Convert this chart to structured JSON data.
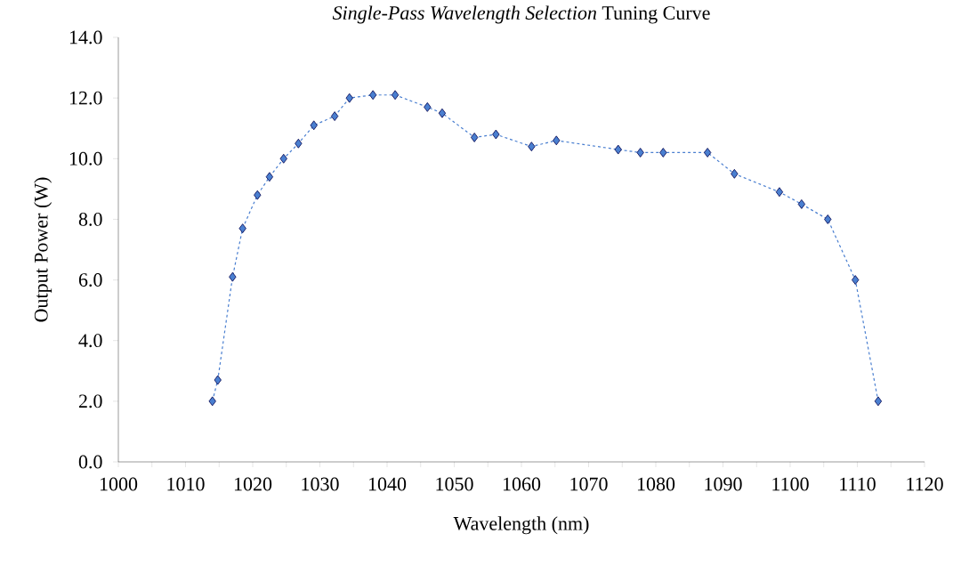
{
  "chart_data": {
    "type": "line",
    "title": "*Single-Pass Wavelength Selection* Tuning Curve",
    "xlabel": "Wavelength (nm)",
    "ylabel": "Output Power (W)",
    "x": [
      1014.0,
      1014.8,
      1017.0,
      1018.5,
      1020.7,
      1022.5,
      1024.6,
      1026.8,
      1029.1,
      1032.2,
      1034.4,
      1037.9,
      1041.2,
      1046.0,
      1048.2,
      1053.0,
      1056.2,
      1061.5,
      1065.2,
      1074.4,
      1077.7,
      1081.1,
      1087.7,
      1091.7,
      1098.4,
      1101.7,
      1105.6,
      1109.7,
      1113.1
    ],
    "series": [
      {
        "color": "#4a7fd0",
        "values": [
          2.0,
          2.7,
          6.1,
          7.7,
          8.8,
          9.4,
          10.0,
          10.5,
          11.1,
          11.4,
          12.0,
          12.1,
          12.1,
          11.7,
          11.5,
          10.7,
          10.8,
          10.4,
          10.6,
          10.3,
          10.2,
          10.2,
          10.2,
          9.5,
          8.9,
          8.5,
          8.0,
          6.0,
          2.0
        ]
      }
    ],
    "marker": "diamond",
    "line_style": "dashed",
    "xlim": [
      1000,
      1120
    ],
    "xticks": [
      1000,
      1010,
      1020,
      1030,
      1040,
      1050,
      1060,
      1070,
      1080,
      1090,
      1100,
      1110,
      1120
    ],
    "ylim": [
      0,
      14
    ],
    "yticks": [
      {
        "value": 0,
        "label": "0.0"
      },
      {
        "value": 2,
        "label": "2.0"
      },
      {
        "value": 4,
        "label": "4.0"
      },
      {
        "value": 6,
        "label": "6.0"
      },
      {
        "value": 8,
        "label": "8.0"
      },
      {
        "value": 10,
        "label": "10.0"
      },
      {
        "value": 12,
        "label": "12.0"
      },
      {
        "value": 14,
        "label": "14.0"
      }
    ]
  }
}
